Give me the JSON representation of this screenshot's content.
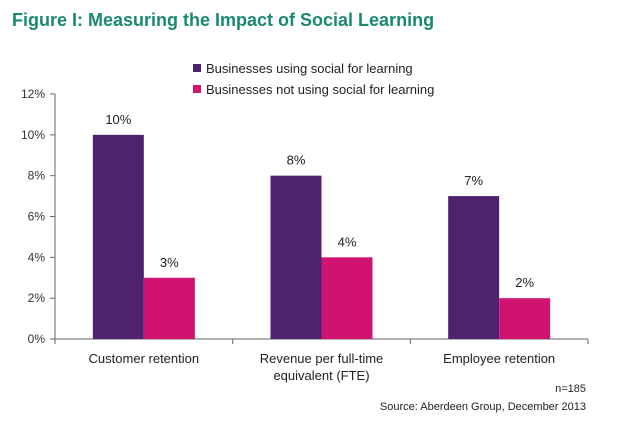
{
  "colors": {
    "title": "#1a8a6e",
    "series_1": "#4f2270",
    "series_2": "#d01271",
    "axis": "#666666"
  },
  "figure": {
    "title": "Figure I: Measuring the Impact of Social Learning",
    "sample_note": "n=185",
    "source": "Source: Aberdeen Group, December 2013"
  },
  "chart_data": {
    "type": "bar",
    "title": "Figure I: Measuring the Impact of Social Learning",
    "xlabel": "",
    "ylabel": "",
    "categories": [
      [
        "Customer retention"
      ],
      [
        "Revenue per full-time",
        "equivalent (FTE)"
      ],
      [
        "Employee retention"
      ]
    ],
    "series": [
      {
        "name": "Businesses using social for learning",
        "values": [
          10,
          8,
          7
        ],
        "labels": [
          "10%",
          "8%",
          "7%"
        ]
      },
      {
        "name": "Businesses not using social for learning",
        "values": [
          3,
          4,
          2
        ],
        "labels": [
          "3%",
          "4%",
          "2%"
        ]
      }
    ],
    "ylim": [
      0,
      12
    ],
    "yticks": [
      0,
      2,
      4,
      6,
      8,
      10,
      12
    ],
    "ytick_labels": [
      "0%",
      "2%",
      "4%",
      "6%",
      "8%",
      "10%",
      "12%"
    ],
    "grid": false,
    "legend_position": "top-right"
  }
}
